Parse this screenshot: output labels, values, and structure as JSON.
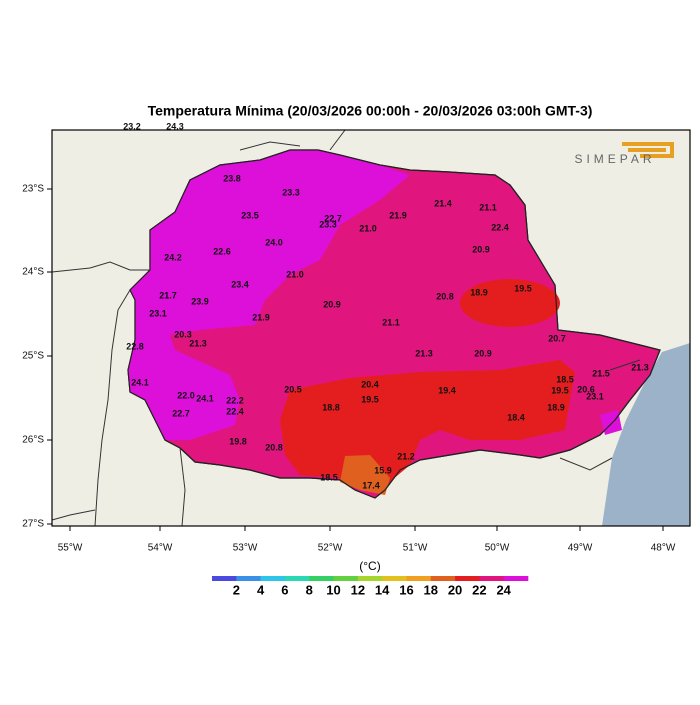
{
  "header": {
    "title": "Temperatura Mínima (20/03/2026 00:00h - 20/03/2026 03:00h GMT-3)"
  },
  "logo": "SIMEPAR",
  "map": {
    "lon_ticks": [
      "55°W",
      "54°W",
      "53°W",
      "52°W",
      "51°W",
      "50°W",
      "49°W",
      "48°W"
    ],
    "lat_ticks": [
      "23°S",
      "24°S",
      "25°S",
      "26°S",
      "27°S"
    ],
    "stations": [
      "23.2",
      "24.3",
      "23.8",
      "23.3",
      "23.5",
      "22.7",
      "23.3",
      "21.9",
      "21.4",
      "21.1",
      "22.4",
      "21.0",
      "24.0",
      "22.6",
      "24.2",
      "20.9",
      "21.0",
      "23.4",
      "18.9",
      "19.5",
      "20.8",
      "21.7",
      "23.9",
      "20.9",
      "23.1",
      "21.9",
      "21.1",
      "20.3",
      "21.3",
      "20.7",
      "22.8",
      "21.3",
      "20.9",
      "21.5",
      "21.3",
      "24.1",
      "20.5",
      "20.4",
      "19.4",
      "18.5",
      "19.5",
      "20.6",
      "22.0",
      "24.1",
      "22.2",
      "19.5",
      "23.1",
      "22.7",
      "22.4",
      "18.8",
      "18.4",
      "18.9",
      "19.8",
      "20.8",
      "21.2",
      "18.5",
      "15.9",
      "17.4"
    ]
  },
  "legend": {
    "unit": "(°C)",
    "ticks": [
      2,
      4,
      6,
      8,
      10,
      12,
      14,
      16,
      18,
      20,
      22,
      24
    ],
    "colors": [
      "#4a4ae0",
      "#3a8fe6",
      "#2fc4ea",
      "#2ad8b4",
      "#34d064",
      "#62d040",
      "#a4d62e",
      "#e2c01e",
      "#f0a01e",
      "#e06020",
      "#e41e1e",
      "#e0167e",
      "#dc10d8"
    ]
  }
}
